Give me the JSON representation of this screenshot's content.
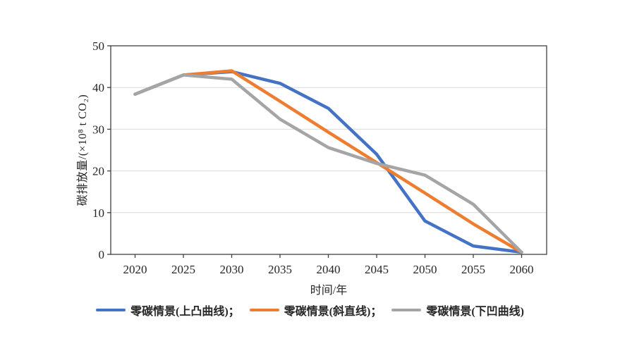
{
  "chart_data": {
    "type": "line",
    "title": "",
    "xlabel": "时间/年",
    "ylabel": "碳排放量/(×10⁸ t CO₂)",
    "x": [
      2020,
      2025,
      2030,
      2035,
      2040,
      2045,
      2050,
      2055,
      2060
    ],
    "x_tick_labels": [
      "2020",
      "2025",
      "2030",
      "2035",
      "2040",
      "2045",
      "2050",
      "2055",
      "2060"
    ],
    "y_ticks": [
      0,
      10,
      20,
      30,
      40,
      50
    ],
    "ylim": [
      0,
      50
    ],
    "grid": "horizontal",
    "legend_position": "bottom",
    "series": [
      {
        "name": "零碳情景(上凸曲线)",
        "color": "#4472C4",
        "values": [
          38.4,
          43,
          43.8,
          41,
          35,
          24,
          8,
          2,
          0.5
        ]
      },
      {
        "name": "零碳情景(斜直线)",
        "color": "#ED7D31",
        "values": [
          38.4,
          43,
          44,
          36.7,
          29.3,
          22,
          14.7,
          7.3,
          0.5
        ]
      },
      {
        "name": "零碳情景(下凹曲线)",
        "color": "#A5A5A5",
        "values": [
          38.4,
          43,
          42,
          32.4,
          25.6,
          21.8,
          19,
          12,
          0.5
        ]
      }
    ],
    "legend_labels": [
      "零碳情景(上凸曲线)；",
      "零碳情景(斜直线)；",
      "零碳情景(下凹曲线)"
    ]
  },
  "colors": {
    "background": "#ffffff",
    "axis": "#404040",
    "gridline": "#d9d9d9",
    "tick_text": "#262626"
  }
}
